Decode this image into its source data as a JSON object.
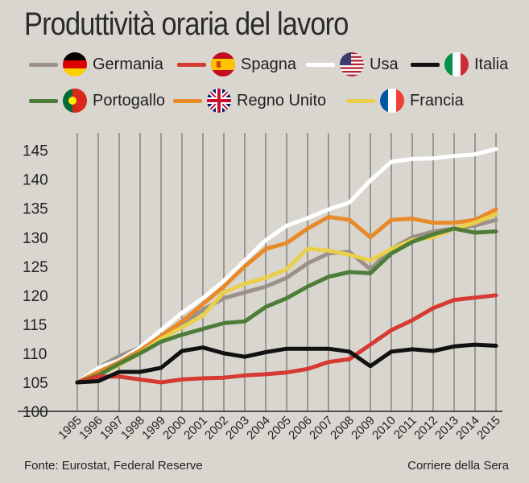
{
  "header": {
    "title": "Produttività oraria del lavoro"
  },
  "legend": [
    {
      "key": "germania",
      "label": "Germania",
      "color": "#9b918a",
      "flag": "germany-flag-icon"
    },
    {
      "key": "spagna",
      "label": "Spagna",
      "color": "#d63a32",
      "flag": "spain-flag-icon"
    },
    {
      "key": "usa",
      "label": "Usa",
      "color": "#ffffff",
      "flag": "usa-flag-icon"
    },
    {
      "key": "italia",
      "label": "Italia",
      "color": "#111111",
      "flag": "italy-flag-icon"
    },
    {
      "key": "portogallo",
      "label": "Portogallo",
      "color": "#4e7d3a",
      "flag": "portugal-flag-icon"
    },
    {
      "key": "regno_unito",
      "label": "Regno Unito",
      "color": "#e8892a",
      "flag": "uk-flag-icon"
    },
    {
      "key": "francia",
      "label": "Francia",
      "color": "#ead04a",
      "flag": "france-flag-icon"
    }
  ],
  "footer": {
    "source": "Fonte: Eurostat, Federal Reserve",
    "publisher": "Corriere della Sera"
  },
  "chart_data": {
    "type": "line",
    "title": "Produttività oraria del lavoro",
    "xlabel": "",
    "ylabel": "",
    "ylim": [
      100,
      148
    ],
    "yticks": [
      100,
      105,
      110,
      115,
      120,
      125,
      130,
      135,
      140,
      145
    ],
    "ytick_labels": [
      "100",
      "105",
      "110",
      "115",
      "120",
      "125",
      "130",
      "135",
      "140",
      "145"
    ],
    "x": [
      "1995",
      "1996",
      "1997",
      "1998",
      "1999",
      "2000",
      "2001",
      "2002",
      "2003",
      "2004",
      "2005",
      "2006",
      "2007",
      "2008",
      "2009",
      "2010",
      "2011",
      "2012",
      "2013",
      "2014",
      "2015"
    ],
    "grid": "vertical",
    "series": [
      {
        "name": "Germania",
        "color": "#9b918a",
        "values": [
          105,
          107.5,
          109.5,
          111,
          112.5,
          115,
          117.5,
          119.5,
          120.5,
          121.5,
          123,
          125.5,
          127.2,
          127.5,
          124.5,
          128,
          130,
          131,
          131.5,
          132,
          133
        ]
      },
      {
        "name": "Usa",
        "color": "#ffffff",
        "values": [
          105,
          107.5,
          108.8,
          111,
          114,
          117,
          119.5,
          122.5,
          126,
          129.5,
          132,
          133.3,
          134.8,
          136,
          139.8,
          143,
          143.5,
          143.6,
          144,
          144.3,
          145.2
        ]
      },
      {
        "name": "Regno Unito",
        "color": "#e8892a",
        "values": [
          105,
          106.8,
          108.5,
          110.5,
          113,
          115.5,
          118.5,
          121.5,
          125,
          128,
          129,
          131.5,
          133.5,
          133,
          130,
          133,
          133.2,
          132.5,
          132.5,
          133,
          134.8
        ]
      },
      {
        "name": "Francia",
        "color": "#ead04a",
        "values": [
          105,
          106.2,
          108,
          110,
          112.5,
          114.5,
          116.5,
          120.5,
          122,
          123,
          124.5,
          128,
          127.7,
          127,
          126,
          128,
          129.5,
          130,
          131.5,
          132.5,
          134
        ]
      },
      {
        "name": "Portogallo",
        "color": "#4e7d3a",
        "values": [
          105,
          106.2,
          108.2,
          110,
          112,
          113.2,
          114.2,
          115.2,
          115.5,
          118,
          119.5,
          121.5,
          123.2,
          124,
          123.8,
          127.2,
          129.2,
          130.5,
          131.5,
          130.8,
          131
        ]
      },
      {
        "name": "Spagna",
        "color": "#d63a32",
        "values": [
          105,
          106,
          106,
          105.5,
          105,
          105.5,
          105.7,
          105.8,
          106.2,
          106.4,
          106.7,
          107.3,
          108.5,
          109,
          111.5,
          114,
          115.7,
          117.8,
          119.2,
          119.6,
          120
        ]
      },
      {
        "name": "Italia",
        "color": "#111111",
        "values": [
          105,
          105.2,
          106.8,
          106.8,
          107.5,
          110.4,
          111,
          110,
          109.4,
          110.2,
          110.8,
          110.8,
          110.8,
          110.3,
          107.8,
          110.3,
          110.7,
          110.4,
          111.2,
          111.5,
          111.3
        ]
      }
    ]
  }
}
